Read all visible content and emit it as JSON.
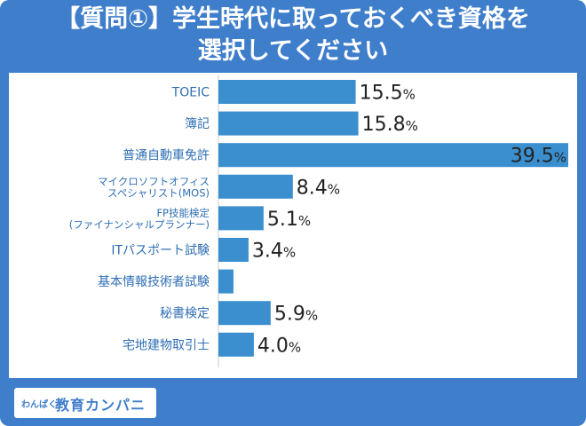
{
  "title": {
    "line1": "【質問①】学生時代に取っておくべき資格を",
    "line2": "選択してください"
  },
  "logo": {
    "small": "わんぱく",
    "main": "教育カンパニー"
  },
  "colors": {
    "bar": "#3b8fce",
    "frame": "#3f7ecb",
    "category_label": "#2f6fb5",
    "value_label": "#222222"
  },
  "chart_data": {
    "type": "bar",
    "orientation": "horizontal",
    "categories": [
      [
        "TOEIC"
      ],
      [
        "簿記"
      ],
      [
        "普通自動車免許"
      ],
      [
        "マイクロソフトオフィス",
        "スペシャリスト(MOS)"
      ],
      [
        "FP技能検定",
        "(ファイナンシャルプランナー)"
      ],
      [
        "ITパスポート試験"
      ],
      [
        "基本情報技術者試験"
      ],
      [
        "秘書検定"
      ],
      [
        "宅地建物取引士"
      ]
    ],
    "values": [
      15.5,
      15.8,
      39.5,
      8.4,
      5.1,
      3.4,
      1.7,
      5.9,
      4.0
    ],
    "labels": [
      "15.5",
      "15.8",
      "39.5",
      "8.4",
      "5.1",
      "3.4",
      "",
      "5.9",
      "4.0"
    ],
    "unit": "%",
    "xlim": [
      0,
      39.5
    ],
    "grid": false,
    "legend": "none"
  }
}
